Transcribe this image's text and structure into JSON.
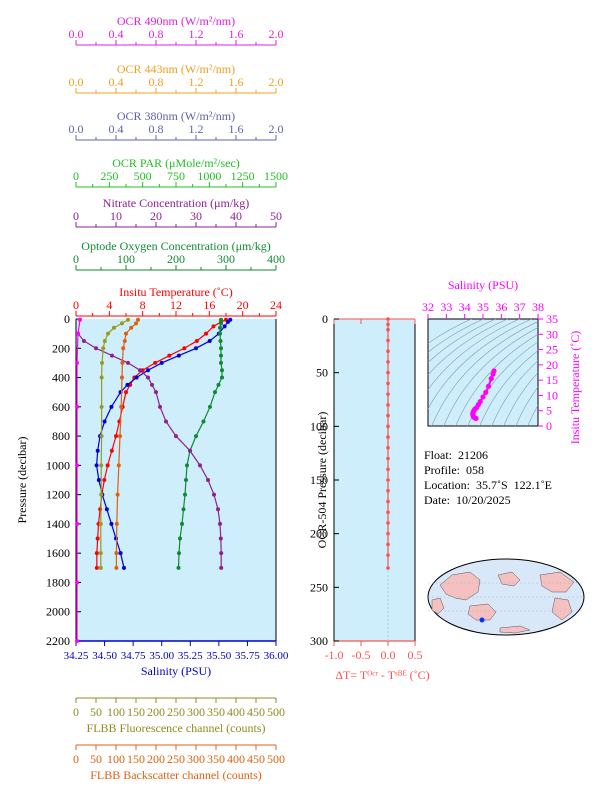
{
  "chart_data": [
    {
      "type": "line",
      "name": "main-profile-panel",
      "y_axis": {
        "label": "Pressure (decibar)",
        "range": [
          0,
          2200
        ],
        "inverted": true,
        "ticks": [
          0,
          200,
          400,
          600,
          800,
          1000,
          1200,
          1400,
          1600,
          1800,
          2000,
          2200
        ]
      },
      "top_axes": [
        {
          "key": "ocr490",
          "label": "OCR 490nm (W/m²/nm)",
          "color": "#e020e0",
          "range": [
            0,
            2
          ],
          "ticks": [
            "0.0",
            "0.4",
            "0.8",
            "1.2",
            "1.6",
            "2.0"
          ]
        },
        {
          "key": "ocr443",
          "label": "OCR 443nm (W/m²/nm)",
          "color": "#f0a020",
          "range": [
            0,
            2
          ],
          "ticks": [
            "0.0",
            "0.4",
            "0.8",
            "1.2",
            "1.6",
            "2.0"
          ]
        },
        {
          "key": "ocr380",
          "label": "OCR 380nm (W/m²/nm)",
          "color": "#6060b0",
          "range": [
            0,
            2
          ],
          "ticks": [
            "0.0",
            "0.4",
            "0.8",
            "1.2",
            "1.6",
            "2.0"
          ]
        },
        {
          "key": "ocrpar",
          "label": "OCR PAR (μMole/m²/sec)",
          "color": "#20c020",
          "range": [
            0,
            1500
          ],
          "ticks": [
            "0",
            "250",
            "500",
            "750",
            "1000",
            "1250",
            "1500"
          ]
        },
        {
          "key": "nitrate",
          "label": "Nitrate Concentration (μm/kg)",
          "color": "#902090",
          "range": [
            0,
            50
          ],
          "ticks": [
            "0",
            "10",
            "20",
            "30",
            "40",
            "50"
          ]
        },
        {
          "key": "oxygen",
          "label": "Optode Oxygen Concentration (μm/kg)",
          "color": "#108a30",
          "range": [
            0,
            400
          ],
          "ticks": [
            "0",
            "100",
            "200",
            "300",
            "400"
          ]
        },
        {
          "key": "temp",
          "label": "Insitu Temperature (˚C)",
          "color": "#ff0000",
          "range": [
            0,
            24
          ],
          "ticks": [
            "0",
            "4",
            "8",
            "12",
            "16",
            "20",
            "24"
          ]
        }
      ],
      "bottom_axes": [
        {
          "key": "salinity",
          "label": "Salinity (PSU)",
          "color": "#0000cc",
          "range": [
            34.25,
            36.0
          ],
          "ticks": [
            "34.25",
            "34.50",
            "34.75",
            "35.00",
            "35.25",
            "35.50",
            "35.75",
            "36.00"
          ]
        },
        {
          "key": "flbbfl",
          "label": "FLBB Fluorescence channel (counts)",
          "color": "#8c8c20",
          "range": [
            0,
            500
          ],
          "ticks": [
            "0",
            "50",
            "100",
            "150",
            "200",
            "250",
            "300",
            "350",
            "400",
            "450",
            "500"
          ]
        },
        {
          "key": "flbbbs",
          "label": "FLBB Backscatter channel (counts)",
          "color": "#e06010",
          "range": [
            0,
            500
          ],
          "ticks": [
            "0",
            "50",
            "100",
            "150",
            "200",
            "250",
            "300",
            "350",
            "400",
            "450",
            "500"
          ]
        }
      ],
      "series": [
        {
          "key": "temp",
          "color": "#ff0000",
          "points": [
            [
              18,
              5
            ],
            [
              17.4,
              20
            ],
            [
              16.5,
              50
            ],
            [
              15.6,
              100
            ],
            [
              14.5,
              150
            ],
            [
              13,
              200
            ],
            [
              11.2,
              250
            ],
            [
              9.5,
              300
            ],
            [
              8,
              350
            ],
            [
              7,
              400
            ],
            [
              6.5,
              450
            ],
            [
              6,
              500
            ],
            [
              5.6,
              600
            ],
            [
              5.2,
              700
            ],
            [
              4.8,
              800
            ],
            [
              4.3,
              900
            ],
            [
              3.8,
              1000
            ],
            [
              3.4,
              1100
            ],
            [
              3.1,
              1200
            ],
            [
              2.9,
              1300
            ],
            [
              2.7,
              1400
            ],
            [
              2.6,
              1500
            ],
            [
              2.5,
              1600
            ],
            [
              2.5,
              1700
            ]
          ]
        },
        {
          "key": "salinity",
          "color": "#0000dd",
          "points": [
            [
              35.6,
              5
            ],
            [
              35.58,
              20
            ],
            [
              35.55,
              50
            ],
            [
              35.5,
              100
            ],
            [
              35.42,
              150
            ],
            [
              35.3,
              200
            ],
            [
              35.15,
              250
            ],
            [
              35.0,
              300
            ],
            [
              34.88,
              350
            ],
            [
              34.78,
              400
            ],
            [
              34.7,
              450
            ],
            [
              34.64,
              500
            ],
            [
              34.56,
              600
            ],
            [
              34.5,
              700
            ],
            [
              34.46,
              800
            ],
            [
              34.44,
              900
            ],
            [
              34.43,
              1000
            ],
            [
              34.45,
              1100
            ],
            [
              34.48,
              1200
            ],
            [
              34.52,
              1300
            ],
            [
              34.56,
              1400
            ],
            [
              34.6,
              1500
            ],
            [
              34.64,
              1600
            ],
            [
              34.67,
              1700
            ]
          ]
        },
        {
          "key": "oxygen",
          "color": "#108a30",
          "points": [
            [
              290,
              5
            ],
            [
              290,
              30
            ],
            [
              288,
              60
            ],
            [
              288,
              100
            ],
            [
              289,
              150
            ],
            [
              290,
              200
            ],
            [
              290,
              250
            ],
            [
              290,
              300
            ],
            [
              292,
              350
            ],
            [
              292,
              400
            ],
            [
              285,
              450
            ],
            [
              278,
              500
            ],
            [
              268,
              600
            ],
            [
              255,
              700
            ],
            [
              240,
              800
            ],
            [
              228,
              900
            ],
            [
              222,
              1000
            ],
            [
              220,
              1100
            ],
            [
              218,
              1200
            ],
            [
              215,
              1300
            ],
            [
              212,
              1400
            ],
            [
              208,
              1500
            ],
            [
              206,
              1600
            ],
            [
              205,
              1700
            ]
          ]
        },
        {
          "key": "nitrate",
          "color": "#902090",
          "points": [
            [
              0.5,
              100
            ],
            [
              2,
              150
            ],
            [
              5,
              200
            ],
            [
              9,
              250
            ],
            [
              13,
              300
            ],
            [
              16,
              350
            ],
            [
              18,
              400
            ],
            [
              19,
              450
            ],
            [
              20,
              500
            ],
            [
              21,
              600
            ],
            [
              22.5,
              700
            ],
            [
              25,
              800
            ],
            [
              28.5,
              900
            ],
            [
              31,
              1000
            ],
            [
              33,
              1100
            ],
            [
              34.5,
              1200
            ],
            [
              35.5,
              1300
            ],
            [
              36,
              1400
            ],
            [
              36.2,
              1500
            ],
            [
              36.3,
              1600
            ],
            [
              36.3,
              1700
            ]
          ]
        },
        {
          "key": "flbbfl",
          "color": "#9a9a20",
          "points": [
            [
              130,
              5
            ],
            [
              115,
              30
            ],
            [
              95,
              60
            ],
            [
              80,
              100
            ],
            [
              72,
              150
            ],
            [
              68,
              200
            ],
            [
              65,
              300
            ],
            [
              64,
              400
            ],
            [
              64,
              600
            ],
            [
              64,
              800
            ],
            [
              63,
              1000
            ],
            [
              63,
              1200
            ],
            [
              62,
              1400
            ],
            [
              62,
              1600
            ],
            [
              62,
              1700
            ]
          ]
        },
        {
          "key": "flbbbs",
          "color": "#e06010",
          "points": [
            [
              155,
              5
            ],
            [
              150,
              30
            ],
            [
              138,
              60
            ],
            [
              125,
              100
            ],
            [
              122,
              150
            ],
            [
              118,
              200
            ],
            [
              116,
              300
            ],
            [
              115,
              400
            ],
            [
              113,
              600
            ],
            [
              110,
              800
            ],
            [
              107,
              1000
            ],
            [
              104,
              1200
            ],
            [
              102,
              1400
            ],
            [
              101,
              1600
            ],
            [
              101,
              1700
            ]
          ]
        },
        {
          "key": "ocr490",
          "color": "#ff00ff",
          "points": [
            [
              0.04,
              5
            ],
            [
              0.02,
              100
            ],
            [
              0.01,
              300
            ],
            [
              0.01,
              600
            ],
            [
              0.01,
              1000
            ],
            [
              0.01,
              1400
            ],
            [
              0.01,
              1800
            ],
            [
              0.01,
              2200
            ]
          ]
        }
      ]
    },
    {
      "type": "line",
      "name": "delta-t-panel",
      "xlabel": "ΔT= Tᴼᶜʳ - Tˢᴮᴱ (˚C)",
      "xticks": [
        "-1.0",
        "-0.5",
        "0.0",
        "0.5"
      ],
      "xlim": [
        -1.0,
        0.5
      ],
      "ylabel": "OCR-504 Pressure (decibar)",
      "ylim": [
        0,
        300
      ],
      "yticks": [
        "0",
        "50",
        "100",
        "150",
        "200",
        "250",
        "300"
      ],
      "color": "#ff5050",
      "points": [
        [
          0.0,
          0
        ],
        [
          0.0,
          5
        ],
        [
          0.0,
          10
        ],
        [
          0.0,
          20
        ],
        [
          0.0,
          30
        ],
        [
          0.0,
          40
        ],
        [
          0.0,
          50
        ],
        [
          0.0,
          60
        ],
        [
          0.0,
          70
        ],
        [
          0.0,
          80
        ],
        [
          0.0,
          90
        ],
        [
          0.0,
          100
        ],
        [
          0.0,
          110
        ],
        [
          0.0,
          120
        ],
        [
          0.0,
          130
        ],
        [
          0.0,
          140
        ],
        [
          0.0,
          150
        ],
        [
          0.0,
          160
        ],
        [
          0.0,
          170
        ],
        [
          0.0,
          180
        ],
        [
          0.0,
          190
        ],
        [
          0.0,
          200
        ],
        [
          0.0,
          210
        ],
        [
          0.0,
          220
        ],
        [
          0.0,
          232
        ]
      ]
    },
    {
      "type": "scatter",
      "name": "ts-diagram",
      "xlabel": "Salinity (PSU)",
      "xticks": [
        "32",
        "33",
        "34",
        "35",
        "36",
        "37",
        "38"
      ],
      "xlim": [
        32,
        38
      ],
      "ylabel": "Insitu Temperature (˚C)",
      "yticks": [
        "0",
        "5",
        "10",
        "15",
        "20",
        "25",
        "30",
        "35"
      ],
      "ylim": [
        0,
        35
      ],
      "color": "#ff00ff",
      "points": [
        [
          35.6,
          18.0
        ],
        [
          35.55,
          17.0
        ],
        [
          35.45,
          15.5
        ],
        [
          35.3,
          13.0
        ],
        [
          35.15,
          11.0
        ],
        [
          35.0,
          9.5
        ],
        [
          34.85,
          8.0
        ],
        [
          34.75,
          7.0
        ],
        [
          34.65,
          6.0
        ],
        [
          34.55,
          5.5
        ],
        [
          34.5,
          5.0
        ],
        [
          34.46,
          4.5
        ],
        [
          34.44,
          4.0
        ],
        [
          34.45,
          3.5
        ],
        [
          34.48,
          3.0
        ],
        [
          34.55,
          2.7
        ],
        [
          34.62,
          2.5
        ]
      ]
    }
  ],
  "float_info": {
    "float": "Float:  21206",
    "profile": "Profile:  058",
    "location": "Location:  35.7˚S  122.1˚E",
    "date": "Date:  10/20/2025"
  },
  "colors": {
    "panel_bg": "#cdeefa",
    "ocean": "#d8e8f8",
    "land": "#f5c0c0"
  }
}
